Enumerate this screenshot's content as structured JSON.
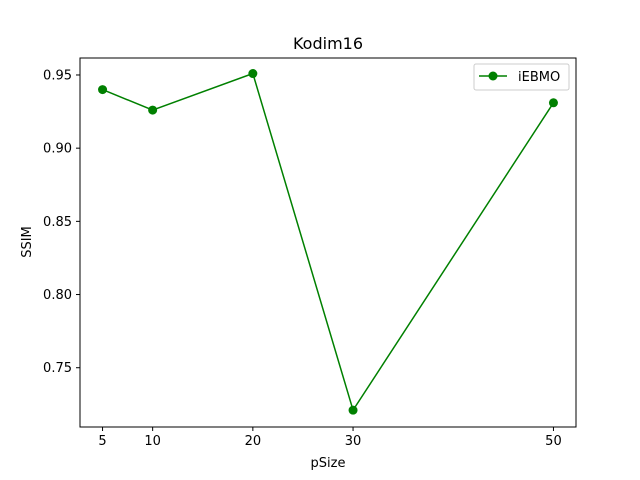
{
  "chart_data": {
    "type": "line",
    "title": "Kodim16",
    "xlabel": "pSize",
    "ylabel": "SSIM",
    "x": [
      5,
      10,
      20,
      30,
      50
    ],
    "xticks": [
      "5",
      "10",
      "20",
      "30",
      "50"
    ],
    "yticks": [
      "0.75",
      "0.80",
      "0.85",
      "0.90",
      "0.95"
    ],
    "ytick_values": [
      0.75,
      0.8,
      0.85,
      0.9,
      0.95
    ],
    "xlim": [
      2.75,
      52.25
    ],
    "ylim": [
      0.7095,
      0.9616
    ],
    "grid": false,
    "legend_position": "top-right",
    "series": [
      {
        "name": "iEBMO",
        "values": [
          0.94,
          0.926,
          0.951,
          0.721,
          0.931
        ],
        "color": "#008000",
        "marker": "circle"
      }
    ]
  }
}
